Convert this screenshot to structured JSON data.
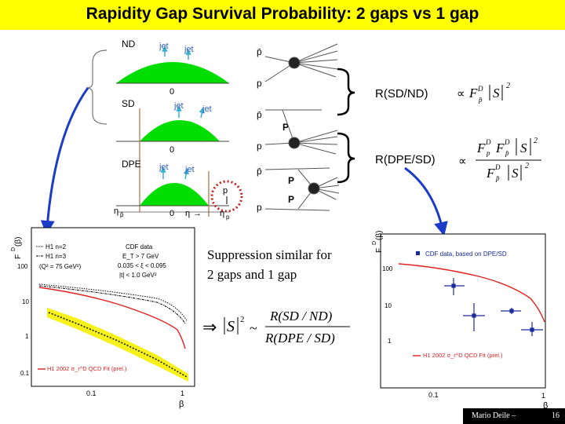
{
  "title": "Rapidity Gap Survival Probability: 2 gaps vs 1 gap",
  "diagram": {
    "nd_label": "ND",
    "sd_label": "SD",
    "dpe_label": "DPE",
    "jet": "jet",
    "zero": "0",
    "pbar": "p̄",
    "p": "p",
    "P": "P",
    "eta_pbar": "η",
    "eta": "η",
    "arrow": "→",
    "eta_p": "η",
    "sub_pbar": "p̄",
    "sub_p": "p"
  },
  "ratios": {
    "sd_nd": "R(SD/ND)",
    "dpe_sd": "R(DPE/SD)",
    "propto": "∝"
  },
  "note": {
    "line1": "Suppression similar for",
    "line2": "2 gaps and 1 gap"
  },
  "equation": {
    "implies": "⇒",
    "s2": "|S|",
    "exp": "2",
    "sim": "~",
    "numerator": "R(SD / ND)",
    "denominator": "R(DPE / SD)"
  },
  "left_plot": {
    "ylabel": "F",
    "ylabel_sup": "D",
    "ylabel_sub": "jj",
    "ylabel_arg": "(β)",
    "legend": [
      "H1 n=2",
      "H1 n=3",
      "(Q² = 75 GeV²)",
      "CDF data",
      "E_T > 7 GeV",
      "0.035 < ξ < 0.095",
      "|t| < 1.0 GeV²"
    ],
    "fit_label": "H1 2002 σ_r^D QCD Fit (prel.)",
    "yticks": [
      "100",
      "10",
      "1",
      "0.1"
    ],
    "xticks": [
      "0.1",
      "1"
    ],
    "xlabel": "β"
  },
  "right_plot": {
    "ylabel": "F",
    "ylabel_sup": "D",
    "ylabel_sub": "jj",
    "ylabel_arg": "(β)",
    "legend": "CDF data, based on DPE/SD",
    "fit_label": "H1 2002 σ_r^D QCD Fit (prel.)",
    "yticks": [
      "100",
      "10",
      "1"
    ],
    "xticks": [
      "0.1",
      "1"
    ],
    "xlabel": "β"
  },
  "footer": {
    "author": "Mario Deile –",
    "page": "16"
  },
  "colors": {
    "title_bg": "#ffff00",
    "green": "#00dd00",
    "blue_arrow": "#1c3cc8",
    "fit": "#e02020",
    "band": "#f4f000",
    "cdf_points": "#1a2a9a"
  }
}
